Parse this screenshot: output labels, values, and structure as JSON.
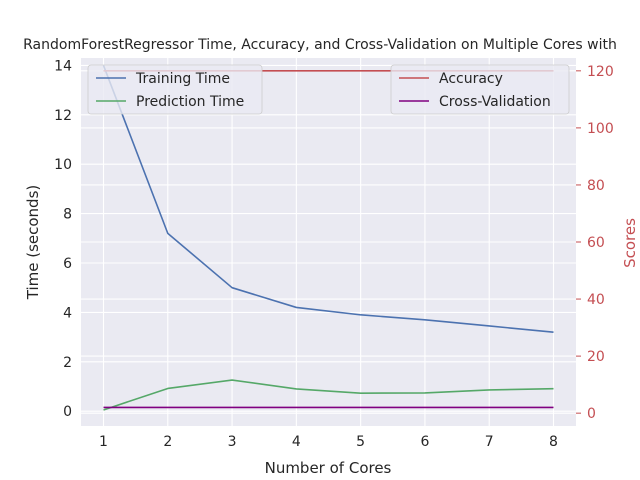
{
  "chart_data": {
    "type": "line",
    "title": "RandomForestRegressor Time, Accuracy, and Cross-Validation on Multiple Cores with",
    "xlabel": "Number of Cores",
    "ylabel_left": "Time (seconds)",
    "ylabel_right": "Scores",
    "x": [
      1,
      2,
      3,
      4,
      5,
      6,
      7,
      8
    ],
    "x_ticks": [
      "1",
      "2",
      "3",
      "4",
      "5",
      "6",
      "7",
      "8"
    ],
    "ylim_left": [
      -0.6,
      14.3
    ],
    "ylim_right": [
      -4.5,
      124.5
    ],
    "y_ticks_left": [
      "0",
      "2",
      "4",
      "6",
      "8",
      "10",
      "12",
      "14"
    ],
    "y_ticks_right": [
      "0",
      "20",
      "40",
      "60",
      "80",
      "100",
      "120"
    ],
    "grid": true,
    "series_left": [
      {
        "name": "Training Time",
        "color": "#4c72b0",
        "values": [
          14.0,
          7.2,
          5.0,
          4.2,
          3.9,
          3.7,
          3.45,
          3.2
        ]
      },
      {
        "name": "Prediction Time",
        "color": "#55a868",
        "values": [
          0.05,
          0.92,
          1.26,
          0.9,
          0.73,
          0.74,
          0.86,
          0.91
        ]
      }
    ],
    "series_right": [
      {
        "name": "Accuracy",
        "color": "#c44e52",
        "values": [
          120,
          120,
          120,
          120,
          120,
          120,
          120,
          120
        ]
      },
      {
        "name": "Cross-Validation",
        "color": "#800080",
        "values": [
          2,
          2,
          2,
          2,
          2,
          2,
          2,
          2
        ]
      }
    ],
    "legend_left_placement": "top-left",
    "legend_right_placement": "top-right",
    "colors": {
      "background": "#eaeaf2",
      "grid": "#ffffff",
      "right_axis": "#c44e52",
      "text": "#262626"
    }
  }
}
